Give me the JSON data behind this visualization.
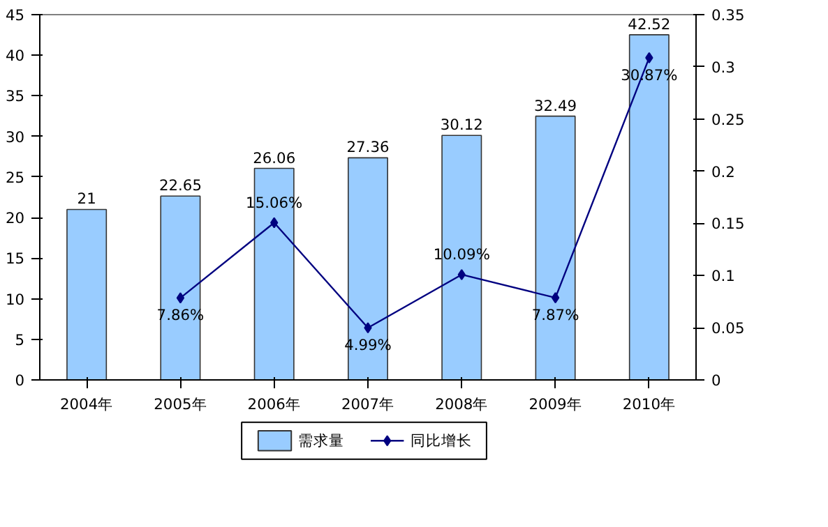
{
  "chart_data": {
    "type": "bar",
    "categories": [
      "2004年",
      "2005年",
      "2006年",
      "2007年",
      "2008年",
      "2009年",
      "2010年"
    ],
    "series": [
      {
        "name": "需求量",
        "color": "#99ccff",
        "values": [
          21,
          22.65,
          26.06,
          27.36,
          30.12,
          32.49,
          42.52
        ],
        "value_labels": [
          "21",
          "22.65",
          "26.06",
          "27.36",
          "30.12",
          "32.49",
          "42.52"
        ]
      },
      {
        "name": "同比增长",
        "type": "line",
        "axis": "y2",
        "color": "#000080",
        "values": [
          null,
          0.0786,
          0.1506,
          0.0499,
          0.1009,
          0.0787,
          0.3087
        ],
        "value_labels": [
          null,
          "7.86%",
          "15.06%",
          "4.99%",
          "10.09%",
          "7.87%",
          "30.87%"
        ]
      }
    ],
    "ylim": [
      0,
      45
    ],
    "yticks": [
      0,
      5,
      10,
      15,
      20,
      25,
      30,
      35,
      40,
      45
    ],
    "y2lim": [
      0,
      0.35
    ],
    "y2ticks": [
      0,
      0.05,
      0.1,
      0.15,
      0.2,
      0.25,
      0.3,
      0.35
    ],
    "marker": "diamond",
    "line_style": "solid",
    "grid": false,
    "legend": "bottom"
  }
}
